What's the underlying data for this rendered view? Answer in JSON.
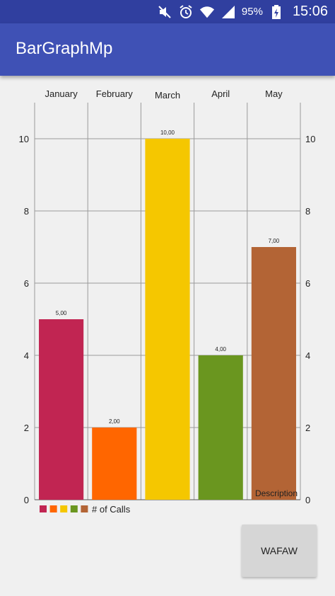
{
  "status_bar": {
    "battery_percent": "95%",
    "time": "15:06",
    "icons": [
      "mute-icon",
      "alarm-icon",
      "wifi-icon",
      "signal-icon",
      "battery-charging-icon"
    ]
  },
  "app_bar": {
    "title": "BarGraphMp"
  },
  "chart_data": {
    "type": "bar",
    "categories": [
      "January",
      "February",
      "March",
      "April",
      "May"
    ],
    "values": [
      5,
      2,
      10,
      4,
      7
    ],
    "value_labels": [
      "5,00",
      "2,00",
      "10,00",
      "4,00",
      "7,00"
    ],
    "colors": [
      "#c12552",
      "#ff6600",
      "#f5c700",
      "#6a961f",
      "#b36435"
    ],
    "ylim": [
      0,
      11
    ],
    "y_ticks": [
      0,
      2,
      4,
      6,
      8,
      10
    ],
    "y_tick_labels": [
      "0",
      "2",
      "4",
      "6",
      "8",
      "10"
    ],
    "legend": {
      "label": "# of Calls",
      "placement": "bottom-left"
    },
    "description": "Description",
    "grid": true,
    "xaxis_position": "top",
    "yaxis": "both"
  },
  "button": {
    "label": "WAFAW"
  }
}
